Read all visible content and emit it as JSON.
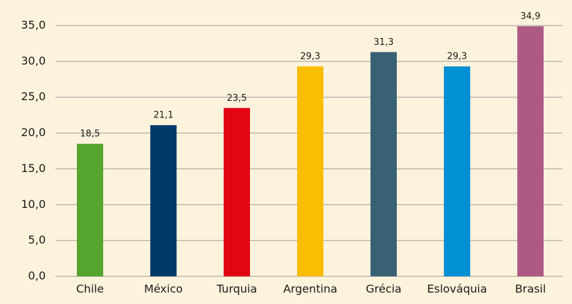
{
  "chart_data": {
    "type": "bar",
    "categories": [
      "Chile",
      "México",
      "Turquia",
      "Argentina",
      "Grécia",
      "Eslováquia",
      "Brasil"
    ],
    "values": [
      18.5,
      21.1,
      23.5,
      29.3,
      31.3,
      29.3,
      34.9
    ],
    "value_labels": [
      "18,5",
      "21,1",
      "23,5",
      "29,3",
      "31,3",
      "29,3",
      "34,9"
    ],
    "colors": [
      "#56a530",
      "#003a6b",
      "#e20613",
      "#fbbd00",
      "#3a6076",
      "#0090d4",
      "#ad5a84"
    ],
    "ylim": [
      0,
      35
    ],
    "yticks": [
      {
        "value": 0,
        "label": "0,0"
      },
      {
        "value": 5,
        "label": "5,0"
      },
      {
        "value": 10,
        "label": "10,0"
      },
      {
        "value": 15,
        "label": "15,0"
      },
      {
        "value": 20,
        "label": "20,0"
      },
      {
        "value": 25,
        "label": "25,0"
      },
      {
        "value": 30,
        "label": "30,0"
      },
      {
        "value": 35,
        "label": "35,0"
      }
    ],
    "grid": true
  }
}
